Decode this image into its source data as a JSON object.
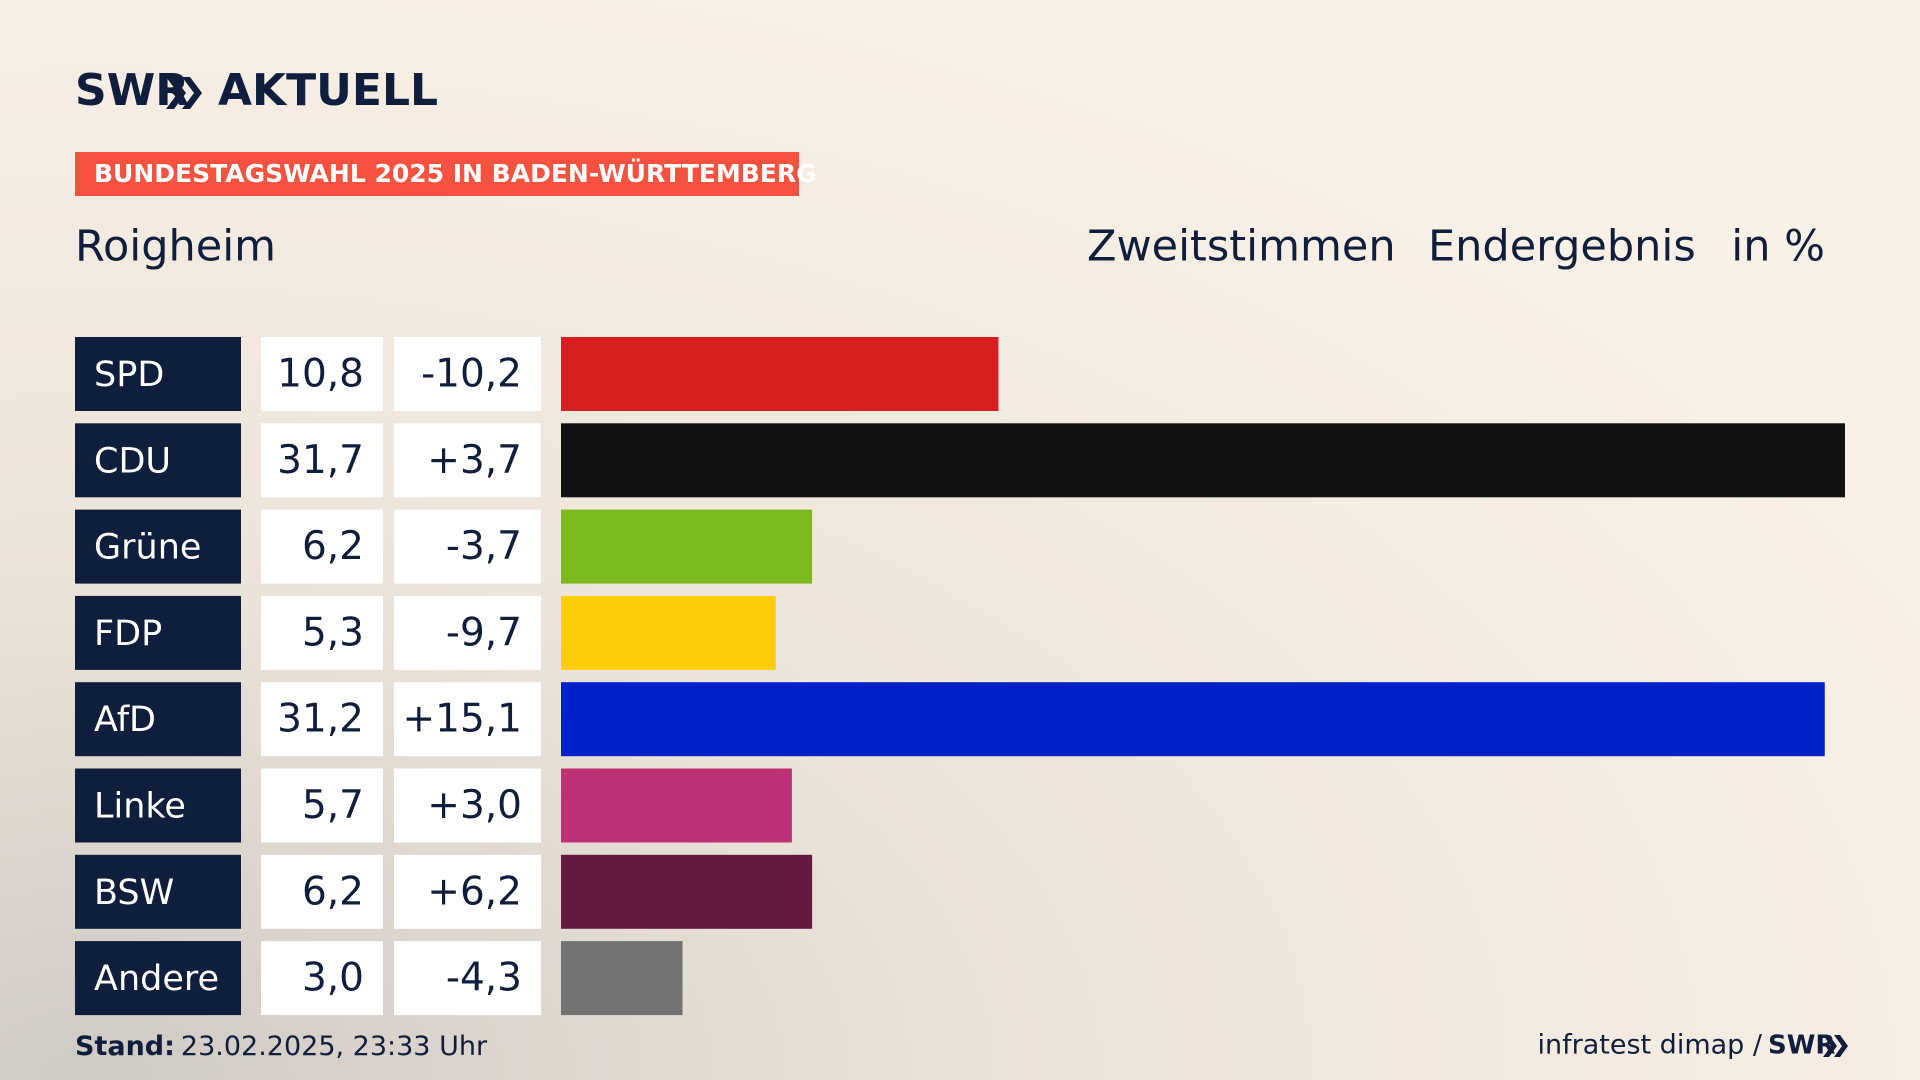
{
  "chart_data": {
    "type": "bar",
    "brand": "SWR",
    "brand_product": "AKTUELL",
    "banner": "BUNDESTAGSWAHL 2025 IN BADEN-WÜRTTEMBERG",
    "title": "Roigheim",
    "subtitle_vote": "Zweitstimmen",
    "subtitle_status": "Endergebnis",
    "unit": "in %",
    "categories": [
      "SPD",
      "CDU",
      "Grüne",
      "FDP",
      "AfD",
      "Linke",
      "BSW",
      "Andere"
    ],
    "values": [
      10.8,
      31.7,
      6.2,
      5.3,
      31.2,
      5.7,
      6.2,
      3.0
    ],
    "value_labels": [
      "10,8",
      "31,7",
      "6,2",
      "5,3",
      "31,2",
      "5,7",
      "6,2",
      "3,0"
    ],
    "change_labels": [
      "-10,2",
      "+3,7",
      "-3,7",
      "-9,7",
      "+15,1",
      "+3,0",
      "+6,2",
      "-4,3"
    ],
    "colors": [
      "#d71f1f",
      "#121212",
      "#7aba1e",
      "#ffcc0a",
      "#0020c8",
      "#bc3275",
      "#661a40",
      "#737373"
    ],
    "stand_label": "Stand:",
    "stand": "23.02.2025, 23:33 Uhr",
    "source": "infratest dimap /",
    "source_brand": "SWR"
  }
}
